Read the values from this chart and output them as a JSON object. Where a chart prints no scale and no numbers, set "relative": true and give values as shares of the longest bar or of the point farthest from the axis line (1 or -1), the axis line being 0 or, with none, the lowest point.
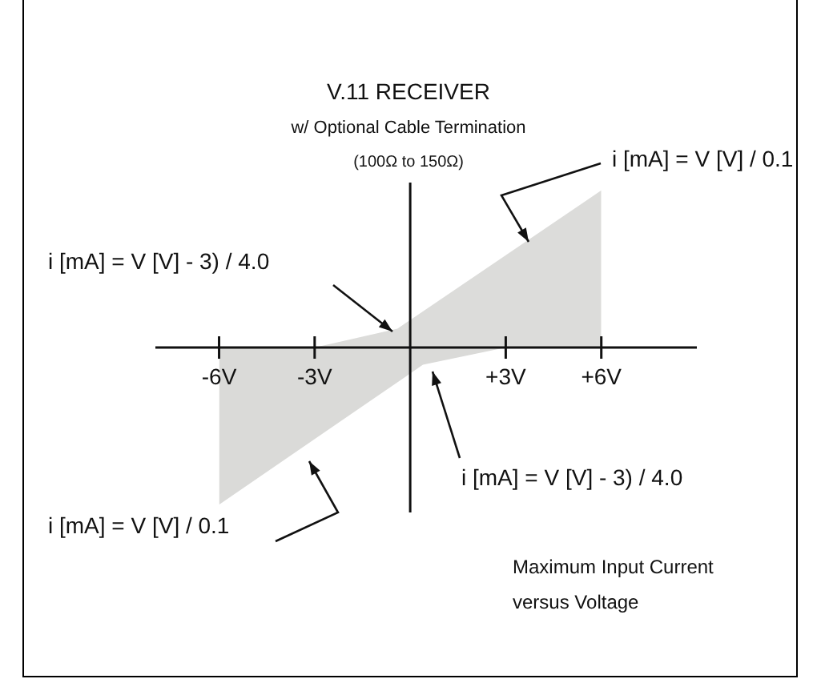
{
  "chart_data": {
    "type": "area",
    "title": "V.11 RECEIVER",
    "subtitle": "w/ Optional Cable Termination",
    "relative": true,
    "legend": false,
    "xlim": [
      -8,
      9
    ],
    "xticks": [
      {
        "value": -6,
        "label": "-6V"
      },
      {
        "value": -3,
        "label": "-3V"
      },
      {
        "value": 3,
        "label": "+3V"
      },
      {
        "value": 6,
        "label": "+6V"
      }
    ],
    "series": [
      {
        "color": "#dcdcda",
        "x": [
          -6,
          -3,
          -0.4,
          6
        ],
        "values": [
          0,
          0,
          0.12,
          1
        ]
      },
      {
        "color": "#dadad8",
        "x": [
          -6,
          0.4,
          3,
          6
        ],
        "values": [
          -1,
          -0.11,
          0,
          0
        ]
      }
    ],
    "annotations": [
      "(100Ω to 150Ω)",
      "i [mA] = V [V] / 0.1",
      "i [mA] = V [V] - 3) / 4.0",
      "i [mA] = V [V] - 3) / 4.0",
      "i [mA] = V [V] / 0.1",
      "Maximum Input Current",
      "versus Voltage"
    ]
  }
}
